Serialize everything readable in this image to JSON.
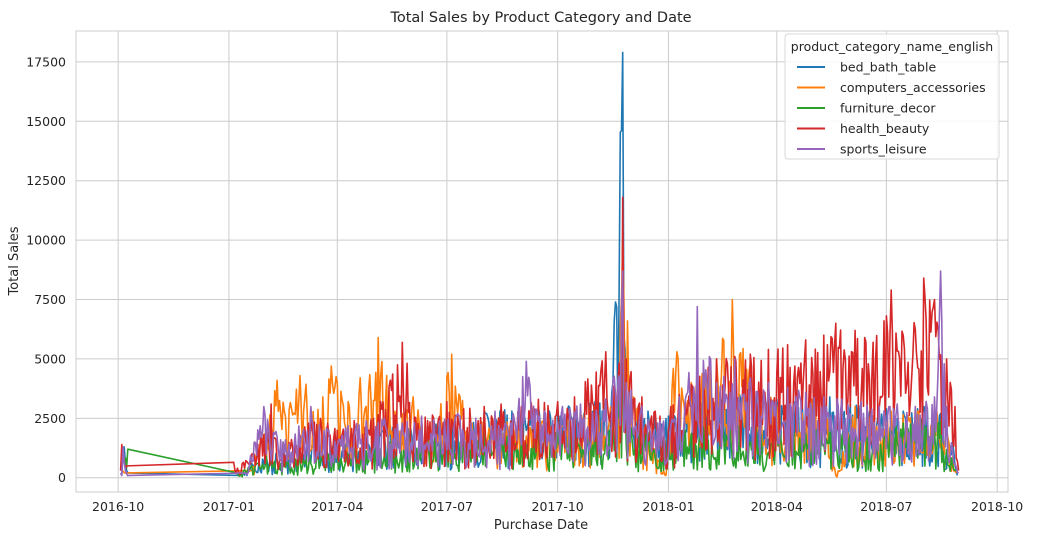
{
  "chart_data": {
    "type": "line",
    "title": "Total Sales by Product Category and Date",
    "xlabel": "Purchase Date",
    "ylabel": "Total Sales",
    "x_range": [
      "2016-08-27",
      "2018-10-10"
    ],
    "ylim": [
      -600,
      18800
    ],
    "x_ticks": [
      "2016-10",
      "2017-01",
      "2017-04",
      "2017-07",
      "2017-10",
      "2018-01",
      "2018-04",
      "2018-07",
      "2018-10"
    ],
    "y_ticks": [
      0,
      2500,
      5000,
      7500,
      10000,
      12500,
      15000,
      17500
    ],
    "grid": true,
    "legend": {
      "title": "product_category_name_english",
      "placement": "top-right"
    },
    "data_density": "daily",
    "series": [
      {
        "name": "bed_bath_table",
        "color": "#1f77b4",
        "points": [
          [
            "2016-10-04",
            150
          ],
          [
            "2016-10-05",
            900
          ],
          [
            "2016-10-06",
            1300
          ],
          [
            "2016-10-07",
            600
          ],
          [
            "2016-10-09",
            200
          ],
          [
            "2017-01-10",
            100
          ],
          [
            "2017-01-20",
            600
          ],
          [
            "2017-02-01",
            900
          ],
          [
            "2017-02-15",
            1200
          ],
          [
            "2017-03-01",
            1300
          ],
          [
            "2017-03-15",
            1500
          ],
          [
            "2017-04-01",
            1700
          ],
          [
            "2017-04-15",
            1600
          ],
          [
            "2017-05-01",
            2000
          ],
          [
            "2017-05-15",
            2200
          ],
          [
            "2017-06-01",
            2100
          ],
          [
            "2017-06-15",
            2200
          ],
          [
            "2017-07-01",
            2500
          ],
          [
            "2017-07-15",
            2400
          ],
          [
            "2017-08-01",
            2800
          ],
          [
            "2017-08-15",
            2900
          ],
          [
            "2017-09-01",
            2800
          ],
          [
            "2017-09-15",
            3000
          ],
          [
            "2017-10-01",
            3100
          ],
          [
            "2017-10-15",
            3000
          ],
          [
            "2017-11-01",
            3200
          ],
          [
            "2017-11-15",
            3600
          ],
          [
            "2017-11-24",
            17900
          ],
          [
            "2017-11-25",
            6000
          ],
          [
            "2017-12-01",
            3200
          ],
          [
            "2017-12-15",
            2800
          ],
          [
            "2018-01-01",
            2600
          ],
          [
            "2018-01-15",
            3000
          ],
          [
            "2018-02-01",
            3300
          ],
          [
            "2018-02-15",
            3400
          ],
          [
            "2018-03-01",
            3500
          ],
          [
            "2018-03-15",
            3400
          ],
          [
            "2018-04-01",
            3300
          ],
          [
            "2018-04-15",
            3200
          ],
          [
            "2018-05-01",
            3300
          ],
          [
            "2018-05-15",
            3400
          ],
          [
            "2018-06-01",
            3100
          ],
          [
            "2018-06-15",
            3000
          ],
          [
            "2018-07-01",
            2900
          ],
          [
            "2018-07-15",
            2800
          ],
          [
            "2018-08-01",
            3000
          ],
          [
            "2018-08-15",
            2700
          ],
          [
            "2018-08-25",
            1500
          ],
          [
            "2018-08-29",
            100
          ]
        ]
      },
      {
        "name": "computers_accessories",
        "color": "#ff7f0e",
        "points": [
          [
            "2016-10-05",
            300
          ],
          [
            "2016-10-07",
            200
          ],
          [
            "2017-01-20",
            300
          ],
          [
            "2017-02-10",
            4100
          ],
          [
            "2017-03-01",
            4300
          ],
          [
            "2017-03-20",
            3400
          ],
          [
            "2017-03-27",
            4700
          ],
          [
            "2017-04-10",
            3200
          ],
          [
            "2017-05-05",
            5900
          ],
          [
            "2017-05-20",
            2800
          ],
          [
            "2017-06-03",
            3400
          ],
          [
            "2017-06-15",
            2000
          ],
          [
            "2017-07-05",
            5200
          ],
          [
            "2017-07-20",
            2400
          ],
          [
            "2017-08-10",
            2600
          ],
          [
            "2017-09-01",
            2200
          ],
          [
            "2017-09-20",
            2400
          ],
          [
            "2017-10-10",
            2600
          ],
          [
            "2017-11-01",
            3000
          ],
          [
            "2017-11-20",
            3200
          ],
          [
            "2017-11-24",
            10000
          ],
          [
            "2017-11-28",
            6600
          ],
          [
            "2017-12-10",
            3000
          ],
          [
            "2017-12-30",
            100
          ],
          [
            "2018-01-05",
            4600
          ],
          [
            "2018-01-08",
            5300
          ],
          [
            "2018-01-20",
            4000
          ],
          [
            "2018-02-10",
            5000
          ],
          [
            "2018-02-23",
            7500
          ],
          [
            "2018-03-10",
            4800
          ],
          [
            "2018-03-25",
            4200
          ],
          [
            "2018-04-10",
            3800
          ],
          [
            "2018-04-25",
            3200
          ],
          [
            "2018-05-10",
            3600
          ],
          [
            "2018-05-20",
            100
          ],
          [
            "2018-06-05",
            3000
          ],
          [
            "2018-06-20",
            2600
          ],
          [
            "2018-07-05",
            2800
          ],
          [
            "2018-07-25",
            3000
          ],
          [
            "2018-08-10",
            3200
          ],
          [
            "2018-08-20",
            2000
          ],
          [
            "2018-08-28",
            200
          ]
        ]
      },
      {
        "name": "furniture_decor",
        "color": "#2ca02c",
        "points": [
          [
            "2016-10-06",
            800
          ],
          [
            "2016-10-09",
            1200
          ],
          [
            "2017-01-08",
            200
          ],
          [
            "2017-01-20",
            500
          ],
          [
            "2017-02-01",
            900
          ],
          [
            "2017-02-15",
            700
          ],
          [
            "2017-03-01",
            900
          ],
          [
            "2017-03-15",
            1000
          ],
          [
            "2017-04-01",
            1100
          ],
          [
            "2017-04-15",
            1200
          ],
          [
            "2017-05-01",
            1300
          ],
          [
            "2017-05-15",
            1500
          ],
          [
            "2017-06-01",
            1400
          ],
          [
            "2017-06-15",
            1600
          ],
          [
            "2017-07-01",
            1700
          ],
          [
            "2017-07-15",
            1600
          ],
          [
            "2017-08-01",
            1900
          ],
          [
            "2017-08-15",
            1800
          ],
          [
            "2017-09-01",
            1900
          ],
          [
            "2017-09-15",
            2000
          ],
          [
            "2017-10-01",
            1900
          ],
          [
            "2017-10-15",
            2000
          ],
          [
            "2017-11-01",
            2200
          ],
          [
            "2017-11-15",
            2400
          ],
          [
            "2017-11-24",
            4800
          ],
          [
            "2017-12-01",
            2100
          ],
          [
            "2017-12-15",
            1900
          ],
          [
            "2018-01-01",
            1800
          ],
          [
            "2018-01-15",
            2000
          ],
          [
            "2018-02-01",
            2200
          ],
          [
            "2018-02-15",
            2300
          ],
          [
            "2018-03-01",
            2200
          ],
          [
            "2018-03-15",
            2100
          ],
          [
            "2018-04-01",
            2000
          ],
          [
            "2018-04-15",
            1900
          ],
          [
            "2018-05-01",
            2000
          ],
          [
            "2018-05-15",
            2100
          ],
          [
            "2018-06-01",
            1800
          ],
          [
            "2018-06-15",
            1700
          ],
          [
            "2018-07-01",
            2000
          ],
          [
            "2018-07-15",
            2300
          ],
          [
            "2018-08-01",
            2500
          ],
          [
            "2018-08-15",
            2400
          ],
          [
            "2018-08-28",
            300
          ]
        ]
      },
      {
        "name": "health_beauty",
        "color": "#d62728",
        "points": [
          [
            "2016-10-03",
            300
          ],
          [
            "2016-10-04",
            1400
          ],
          [
            "2016-10-05",
            900
          ],
          [
            "2016-10-08",
            500
          ],
          [
            "2017-01-05",
            650
          ],
          [
            "2017-01-08",
            400
          ],
          [
            "2017-01-20",
            1000
          ],
          [
            "2017-02-05",
            3100
          ],
          [
            "2017-02-15",
            1500
          ],
          [
            "2017-03-01",
            1800
          ],
          [
            "2017-03-10",
            2900
          ],
          [
            "2017-04-01",
            2000
          ],
          [
            "2017-04-15",
            2400
          ],
          [
            "2017-05-01",
            2500
          ],
          [
            "2017-05-25",
            5700
          ],
          [
            "2017-06-10",
            2500
          ],
          [
            "2017-07-01",
            3200
          ],
          [
            "2017-07-15",
            2900
          ],
          [
            "2017-08-01",
            3000
          ],
          [
            "2017-08-15",
            3100
          ],
          [
            "2017-09-01",
            3000
          ],
          [
            "2017-09-15",
            3300
          ],
          [
            "2017-10-01",
            3200
          ],
          [
            "2017-10-15",
            3400
          ],
          [
            "2017-11-10",
            5300
          ],
          [
            "2017-11-20",
            4000
          ],
          [
            "2017-11-24",
            11800
          ],
          [
            "2017-11-27",
            5000
          ],
          [
            "2017-12-10",
            3400
          ],
          [
            "2017-12-25",
            2600
          ],
          [
            "2018-01-10",
            3500
          ],
          [
            "2018-01-25",
            4800
          ],
          [
            "2018-02-10",
            5000
          ],
          [
            "2018-02-25",
            5100
          ],
          [
            "2018-03-10",
            5200
          ],
          [
            "2018-03-25",
            5400
          ],
          [
            "2018-04-10",
            5600
          ],
          [
            "2018-04-25",
            5800
          ],
          [
            "2018-05-10",
            6000
          ],
          [
            "2018-05-20",
            6500
          ],
          [
            "2018-06-05",
            6200
          ],
          [
            "2018-06-20",
            5700
          ],
          [
            "2018-07-05",
            7900
          ],
          [
            "2018-07-15",
            6000
          ],
          [
            "2018-08-01",
            8400
          ],
          [
            "2018-08-10",
            7500
          ],
          [
            "2018-08-20",
            5000
          ],
          [
            "2018-08-27",
            3000
          ],
          [
            "2018-08-30",
            300
          ]
        ]
      },
      {
        "name": "sports_leisure",
        "color": "#9467bd",
        "points": [
          [
            "2016-10-03",
            200
          ],
          [
            "2016-10-05",
            1300
          ],
          [
            "2016-10-07",
            300
          ],
          [
            "2016-10-10",
            100
          ],
          [
            "2017-01-15",
            200
          ],
          [
            "2017-01-30",
            3000
          ],
          [
            "2017-02-15",
            1500
          ],
          [
            "2017-03-10",
            3000
          ],
          [
            "2017-03-25",
            2000
          ],
          [
            "2017-04-10",
            2200
          ],
          [
            "2017-04-25",
            2400
          ],
          [
            "2017-05-10",
            2500
          ],
          [
            "2017-05-25",
            2300
          ],
          [
            "2017-06-10",
            2600
          ],
          [
            "2017-06-25",
            2400
          ],
          [
            "2017-07-10",
            2700
          ],
          [
            "2017-07-25",
            2500
          ],
          [
            "2017-08-10",
            2800
          ],
          [
            "2017-08-25",
            2700
          ],
          [
            "2017-09-05",
            4900
          ],
          [
            "2017-09-20",
            2800
          ],
          [
            "2017-10-05",
            3000
          ],
          [
            "2017-10-20",
            3100
          ],
          [
            "2017-11-10",
            3300
          ],
          [
            "2017-11-24",
            8700
          ],
          [
            "2017-11-27",
            4000
          ],
          [
            "2017-12-10",
            3000
          ],
          [
            "2017-12-25",
            2400
          ],
          [
            "2018-01-10",
            3400
          ],
          [
            "2018-01-25",
            7200
          ],
          [
            "2018-02-10",
            4000
          ],
          [
            "2018-02-25",
            5000
          ],
          [
            "2018-03-10",
            4200
          ],
          [
            "2018-03-25",
            4000
          ],
          [
            "2018-04-10",
            3800
          ],
          [
            "2018-04-25",
            3600
          ],
          [
            "2018-05-10",
            3400
          ],
          [
            "2018-05-25",
            3300
          ],
          [
            "2018-06-10",
            3200
          ],
          [
            "2018-06-25",
            3000
          ],
          [
            "2018-07-10",
            3100
          ],
          [
            "2018-07-25",
            3000
          ],
          [
            "2018-08-10",
            3400
          ],
          [
            "2018-08-15",
            8700
          ],
          [
            "2018-08-20",
            3000
          ],
          [
            "2018-08-27",
            600
          ],
          [
            "2018-08-30",
            200
          ]
        ]
      }
    ]
  }
}
